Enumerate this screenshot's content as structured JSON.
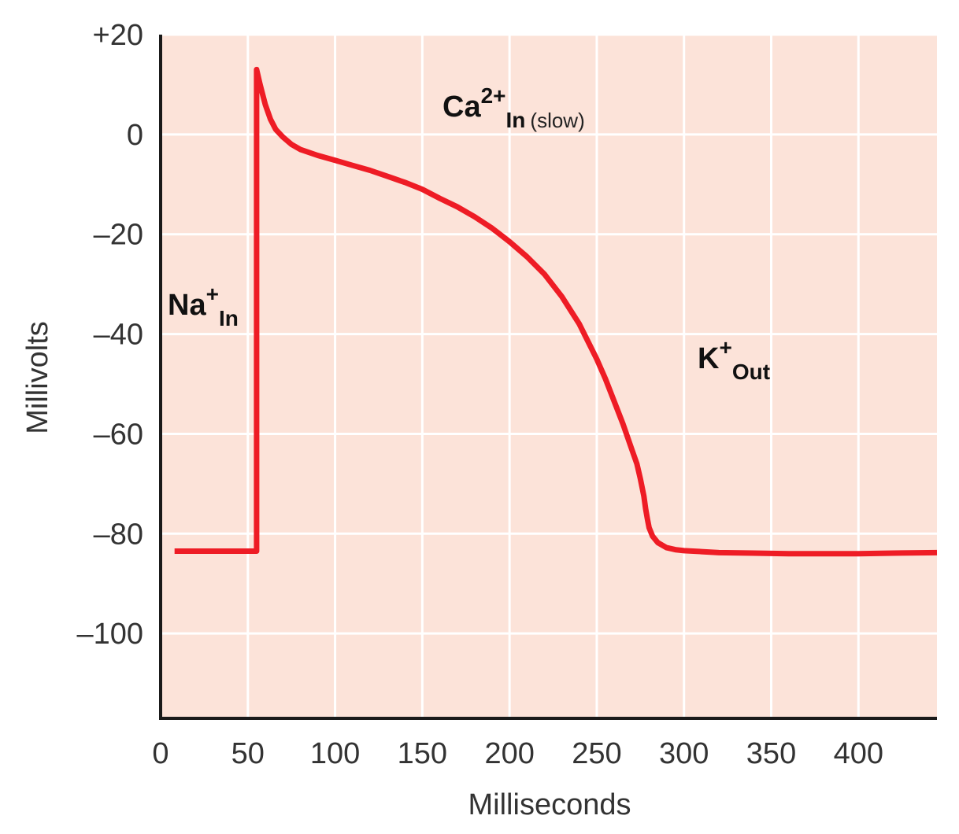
{
  "chart_data": {
    "type": "line",
    "title": "",
    "xlabel": "Milliseconds",
    "ylabel": "Millivolts",
    "xlim": [
      0,
      445
    ],
    "ylim": [
      -117,
      20
    ],
    "x_ticks": [
      0,
      50,
      100,
      150,
      200,
      250,
      300,
      350,
      400
    ],
    "x_tick_labels": [
      "0",
      "50",
      "100",
      "150",
      "200",
      "250",
      "300",
      "350",
      "400"
    ],
    "y_ticks": [
      20,
      0,
      -20,
      -40,
      -60,
      -80,
      -100
    ],
    "y_tick_labels": [
      "+20",
      "0",
      "–20",
      "–40",
      "–60",
      "–80",
      "–100"
    ],
    "grid": true,
    "colors": {
      "plot_background": "#fce3d9",
      "grid": "#ffffff",
      "line": "#ee1c25",
      "axis": "#1a1a1a"
    },
    "series": [
      {
        "x": [
          8,
          55,
          55,
          57,
          60,
          63,
          66,
          70,
          75,
          80,
          90,
          100,
          110,
          120,
          130,
          140,
          150,
          160,
          170,
          180,
          190,
          200,
          210,
          220,
          230,
          240,
          250,
          255,
          260,
          265,
          270,
          273,
          275,
          277,
          278,
          279,
          280,
          282,
          285,
          290,
          295,
          300,
          310,
          320,
          340,
          360,
          380,
          400,
          420,
          445
        ],
        "y": [
          -83.5,
          -83.5,
          13,
          10,
          6,
          3,
          1,
          -0.5,
          -2,
          -3,
          -4.2,
          -5.2,
          -6.2,
          -7.2,
          -8.4,
          -9.6,
          -11,
          -12.8,
          -14.5,
          -16.5,
          -18.8,
          -21.5,
          -24.5,
          -28,
          -32.5,
          -38,
          -45,
          -49,
          -53.5,
          -58,
          -63,
          -66,
          -69,
          -72.5,
          -75,
          -77,
          -78.8,
          -80.5,
          -81.8,
          -82.8,
          -83.2,
          -83.4,
          -83.6,
          -83.8,
          -83.9,
          -84,
          -84,
          -84,
          -83.9,
          -83.8
        ]
      }
    ],
    "annotations": [
      {
        "main": "Na",
        "sup": "+",
        "sub": "In",
        "note": ""
      },
      {
        "main": "Ca",
        "sup": "2+",
        "sub": "In",
        "note": "(slow)"
      },
      {
        "main": "K",
        "sup": "+",
        "sub": "Out",
        "note": ""
      }
    ]
  }
}
